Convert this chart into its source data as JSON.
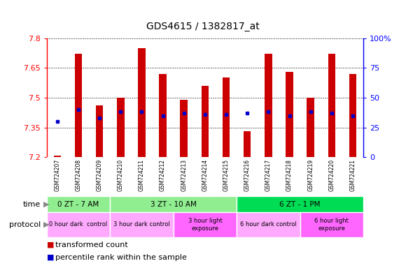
{
  "title": "GDS4615 / 1382817_at",
  "samples": [
    "GSM724207",
    "GSM724208",
    "GSM724209",
    "GSM724210",
    "GSM724211",
    "GSM724212",
    "GSM724213",
    "GSM724214",
    "GSM724215",
    "GSM724216",
    "GSM724217",
    "GSM724218",
    "GSM724219",
    "GSM724220",
    "GSM724221"
  ],
  "red_values": [
    7.21,
    7.72,
    7.46,
    7.5,
    7.75,
    7.62,
    7.49,
    7.56,
    7.6,
    7.33,
    7.72,
    7.63,
    7.5,
    7.72,
    7.62
  ],
  "blue_values_pct": [
    30,
    40,
    33,
    38,
    38,
    35,
    37,
    36,
    36,
    37,
    38,
    35,
    38,
    37,
    35
  ],
  "ymin": 7.2,
  "ymax": 7.8,
  "yright_min": 0,
  "yright_max": 100,
  "yticks_left": [
    7.2,
    7.35,
    7.5,
    7.65,
    7.8
  ],
  "yticks_right_vals": [
    0,
    25,
    50,
    75,
    100
  ],
  "yticks_right_labels": [
    "0",
    "25",
    "50",
    "75",
    "100%"
  ],
  "time_groups": [
    {
      "label": "0 ZT - 7 AM",
      "start": 0,
      "end": 3,
      "color": "#90EE90"
    },
    {
      "label": "3 ZT - 10 AM",
      "start": 3,
      "end": 9,
      "color": "#90EE90"
    },
    {
      "label": "6 ZT - 1 PM",
      "start": 9,
      "end": 15,
      "color": "#00DD55"
    }
  ],
  "protocol_groups": [
    {
      "label": "0 hour dark  control",
      "start": 0,
      "end": 3,
      "color": "#FFAAFF"
    },
    {
      "label": "3 hour dark control",
      "start": 3,
      "end": 6,
      "color": "#FFAAFF"
    },
    {
      "label": "3 hour light\nexposure",
      "start": 6,
      "end": 9,
      "color": "#FF66FF"
    },
    {
      "label": "6 hour dark control",
      "start": 9,
      "end": 12,
      "color": "#FFAAFF"
    },
    {
      "label": "6 hour light\nexposure",
      "start": 12,
      "end": 15,
      "color": "#FF66FF"
    }
  ],
  "bar_color": "#CC0000",
  "dot_color": "#0000CC",
  "base_value": 7.2,
  "bar_width": 0.35,
  "legend_red": "transformed count",
  "legend_blue": "percentile rank within the sample",
  "background_plot": "#FFFFFF",
  "grid_color": "#000000",
  "tick_gray": "#AAAAAA"
}
